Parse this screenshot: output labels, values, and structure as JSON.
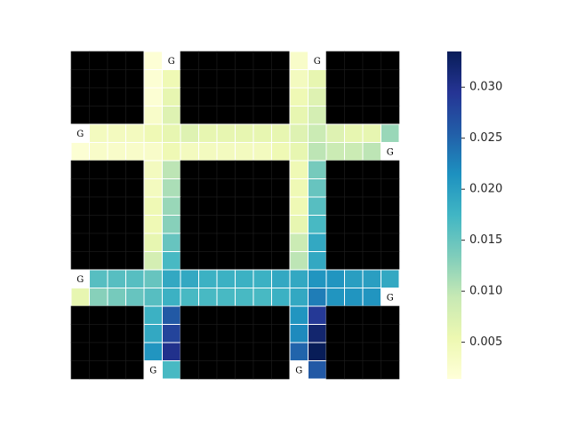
{
  "chart_data": {
    "type": "heatmap",
    "values": [
      [
        null,
        null,
        null,
        null,
        0.0018,
        null,
        null,
        null,
        null,
        null,
        null,
        null,
        0.003,
        null,
        null,
        null,
        null,
        null
      ],
      [
        null,
        null,
        null,
        null,
        0.002,
        0.005,
        null,
        null,
        null,
        null,
        null,
        null,
        0.004,
        0.006,
        null,
        null,
        null,
        null
      ],
      [
        null,
        null,
        null,
        null,
        0.002,
        0.006,
        null,
        null,
        null,
        null,
        null,
        null,
        0.005,
        0.007,
        null,
        null,
        null,
        null
      ],
      [
        null,
        null,
        null,
        null,
        0.003,
        0.007,
        null,
        null,
        null,
        null,
        null,
        null,
        0.006,
        0.008,
        null,
        null,
        null,
        null
      ],
      [
        null,
        0.004,
        0.004,
        0.004,
        0.005,
        0.006,
        0.007,
        0.006,
        0.006,
        0.006,
        0.006,
        0.006,
        0.007,
        0.009,
        0.007,
        0.006,
        0.006,
        0.012
      ],
      [
        0.002,
        0.003,
        0.003,
        0.003,
        0.003,
        0.005,
        0.004,
        0.004,
        0.004,
        0.004,
        0.004,
        0.005,
        0.006,
        0.01,
        0.009,
        0.009,
        0.01,
        null
      ],
      [
        null,
        null,
        null,
        null,
        0.004,
        0.01,
        null,
        null,
        null,
        null,
        null,
        null,
        0.005,
        0.014,
        null,
        null,
        null,
        null
      ],
      [
        null,
        null,
        null,
        null,
        0.004,
        0.011,
        null,
        null,
        null,
        null,
        null,
        null,
        0.005,
        0.015,
        null,
        null,
        null,
        null
      ],
      [
        null,
        null,
        null,
        null,
        0.005,
        0.012,
        null,
        null,
        null,
        null,
        null,
        null,
        0.005,
        0.016,
        null,
        null,
        null,
        null
      ],
      [
        null,
        null,
        null,
        null,
        0.005,
        0.013,
        null,
        null,
        null,
        null,
        null,
        null,
        0.006,
        0.017,
        null,
        null,
        null,
        null
      ],
      [
        null,
        null,
        null,
        null,
        0.006,
        0.015,
        null,
        null,
        null,
        null,
        null,
        null,
        0.009,
        0.019,
        null,
        null,
        null,
        null
      ],
      [
        null,
        null,
        null,
        null,
        0.008,
        0.017,
        null,
        null,
        null,
        null,
        null,
        null,
        0.01,
        0.019,
        null,
        null,
        null,
        null
      ],
      [
        null,
        0.016,
        0.016,
        0.016,
        0.015,
        0.019,
        0.019,
        0.018,
        0.018,
        0.018,
        0.018,
        0.019,
        0.019,
        0.021,
        0.021,
        0.02,
        0.02,
        0.019
      ],
      [
        0.006,
        0.013,
        0.014,
        0.015,
        0.016,
        0.018,
        0.017,
        0.017,
        0.017,
        0.017,
        0.017,
        0.018,
        0.019,
        0.023,
        0.021,
        0.021,
        0.021,
        null
      ],
      [
        null,
        null,
        null,
        null,
        0.018,
        0.026,
        null,
        null,
        null,
        null,
        null,
        null,
        0.021,
        0.029,
        null,
        null,
        null,
        null
      ],
      [
        null,
        null,
        null,
        null,
        0.019,
        0.028,
        null,
        null,
        null,
        null,
        null,
        null,
        0.022,
        0.032,
        null,
        null,
        null,
        null
      ],
      [
        null,
        null,
        null,
        null,
        0.021,
        0.03,
        null,
        null,
        null,
        null,
        null,
        null,
        0.025,
        0.0335,
        null,
        null,
        null,
        null
      ],
      [
        null,
        null,
        null,
        null,
        null,
        0.017,
        null,
        null,
        null,
        null,
        null,
        null,
        null,
        0.026,
        null,
        null,
        null,
        null
      ]
    ],
    "annotations": [
      {
        "row": 0,
        "col": 5,
        "label": "G"
      },
      {
        "row": 0,
        "col": 13,
        "label": "G"
      },
      {
        "row": 4,
        "col": 0,
        "label": "G"
      },
      {
        "row": 5,
        "col": 17,
        "label": "G"
      },
      {
        "row": 12,
        "col": 0,
        "label": "G"
      },
      {
        "row": 13,
        "col": 17,
        "label": "G"
      },
      {
        "row": 17,
        "col": 4,
        "label": "G"
      },
      {
        "row": 17,
        "col": 12,
        "label": "G"
      }
    ],
    "colormap": [
      "#ffffd9",
      "#edf8b1",
      "#c7e9b4",
      "#7fcdbb",
      "#41b6c4",
      "#1d91c0",
      "#225ea8",
      "#253494",
      "#081d58"
    ],
    "clim": [
      0.0014,
      0.0335
    ],
    "cticks": [
      0.005,
      {
        "value": 0.01,
        "label": "0.010"
      },
      0.015,
      {
        "value": 0.02,
        "label": "0.020"
      },
      0.025,
      {
        "value": 0.03,
        "label": "0.030"
      }
    ]
  }
}
